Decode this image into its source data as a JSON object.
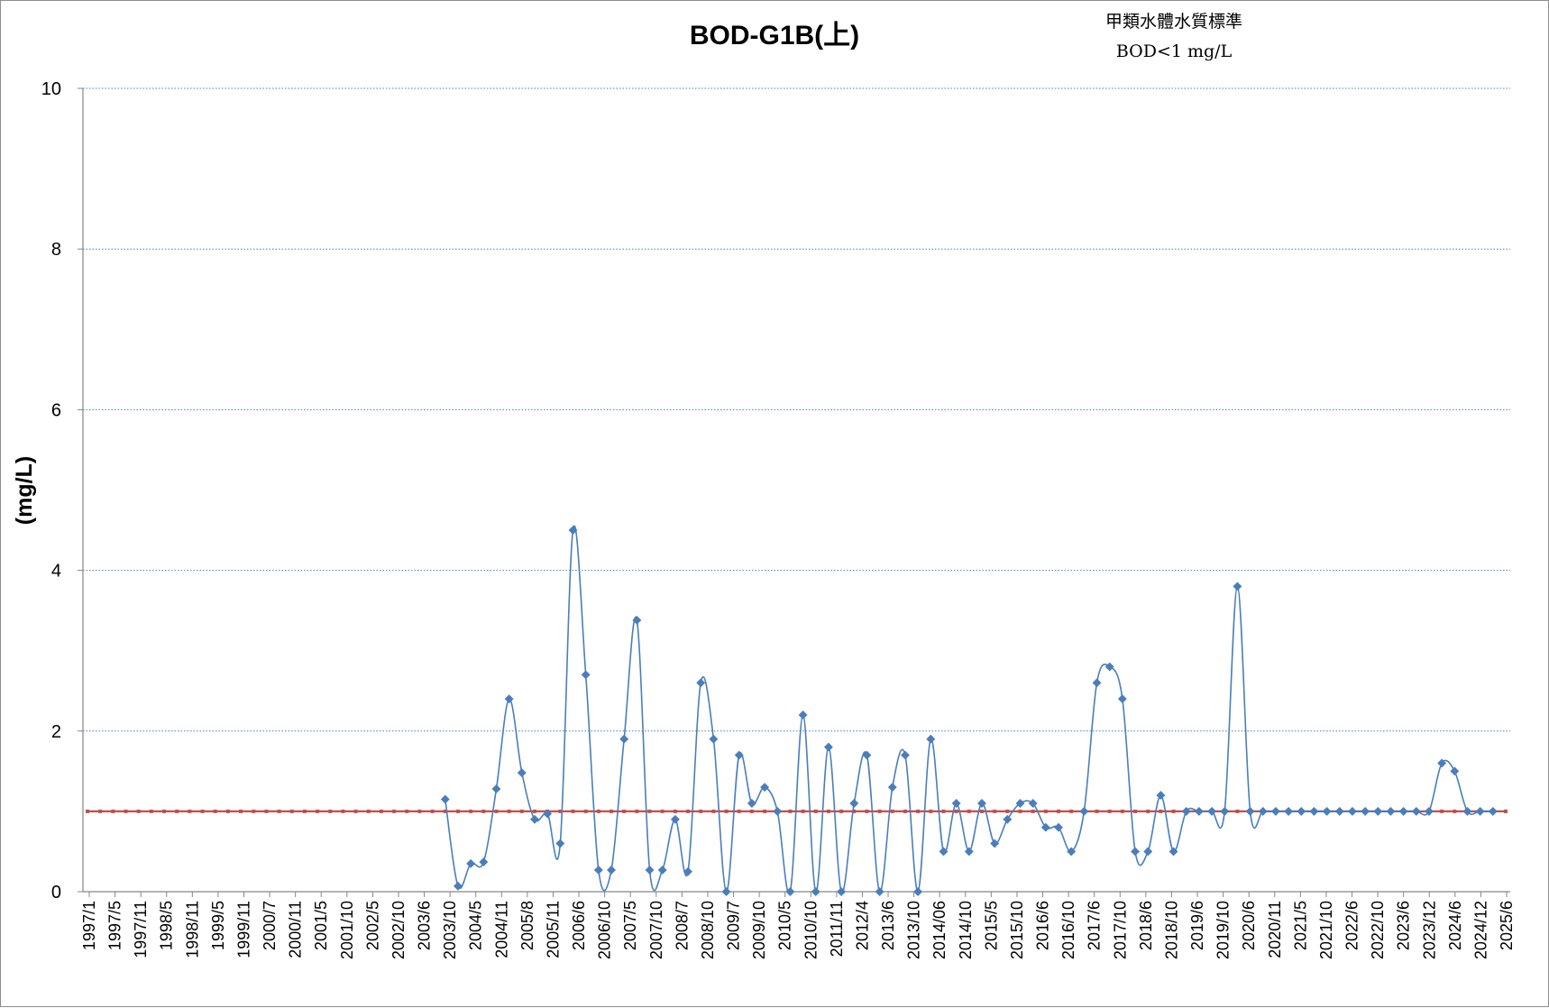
{
  "chart_data": {
    "type": "line",
    "title": "BOD-G1B(上)",
    "annotation_lines": [
      "甲類水體水質標準",
      "BOD<1 mg/L"
    ],
    "ylabel": "(mg/L)",
    "xlabel": "",
    "ylim": [
      0,
      10
    ],
    "yticks": [
      0,
      2,
      4,
      6,
      8,
      10
    ],
    "grid": "horizontal dotted",
    "legend": "none",
    "x_tick_labels": [
      "1997/1",
      "1997/5",
      "1997/11",
      "1998/5",
      "1998/11",
      "1999/5",
      "1999/11",
      "2000/7",
      "2000/11",
      "2001/5",
      "2001/10",
      "2002/5",
      "2002/10",
      "2003/6",
      "2003/10",
      "2004/5",
      "2004/11",
      "2005/8",
      "2005/11",
      "2006/6",
      "2006/10",
      "2007/5",
      "2007/10",
      "2008/7",
      "2008/10",
      "2009/7",
      "2009/10",
      "2010/5",
      "2010/10",
      "2011/11",
      "2012/4",
      "2013/6",
      "2013/10",
      "2014/06",
      "2014/10",
      "2015/5",
      "2015/10",
      "2016/6",
      "2016/10",
      "2017/6",
      "2017/10",
      "2018/6",
      "2018/10",
      "2019/6",
      "2019/10",
      "2020/6",
      "2020/11",
      "2021/5",
      "2021/10",
      "2022/6",
      "2022/10",
      "2023/6",
      "2023/12",
      "2024/6",
      "2024/12",
      "2025/6"
    ],
    "sample_count": 112,
    "series": [
      {
        "role": "measured BOD",
        "color": "#4a7ebb",
        "start_index": 28,
        "values": [
          1.15,
          0.07,
          0.35,
          0.37,
          1.28,
          2.4,
          1.48,
          0.9,
          0.97,
          0.6,
          4.5,
          2.7,
          0.27,
          0.27,
          1.9,
          3.38,
          0.27,
          0.27,
          0.9,
          0.25,
          2.6,
          1.9,
          0.0,
          1.7,
          1.1,
          1.3,
          1.0,
          0.0,
          2.2,
          0.0,
          1.8,
          0.0,
          1.1,
          1.7,
          0.0,
          1.3,
          1.7,
          0.0,
          1.9,
          0.5,
          1.1,
          0.5,
          1.1,
          0.6,
          0.9,
          1.1,
          1.1,
          0.8,
          0.8,
          0.5,
          1.0,
          2.6,
          2.8,
          2.4,
          0.5,
          0.5,
          1.2,
          0.5,
          1.0,
          1.0,
          1.0,
          1.0,
          3.8,
          1.0,
          1.0,
          1.0,
          1.0,
          1.0,
          1.0,
          1.0,
          1.0,
          1.0,
          1.0,
          1.0,
          1.0,
          1.0,
          1.0,
          1.0,
          1.6,
          1.5,
          1.0,
          1.0,
          1.0
        ]
      },
      {
        "role": "standard limit",
        "color": "#c0504d",
        "start_index": 0,
        "constant": 1.0
      }
    ]
  }
}
